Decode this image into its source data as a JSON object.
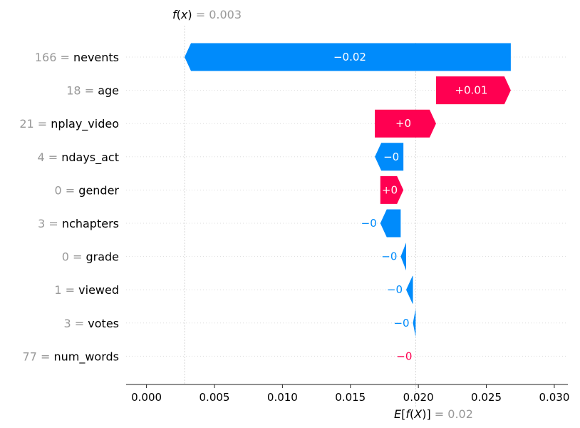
{
  "colors": {
    "positive": "#ff0051",
    "negative": "#008bfb",
    "muted_text": "#999999",
    "gridline": "#cccccc"
  },
  "chart_data": {
    "type": "waterfall",
    "fx_label": {
      "prefix": "f",
      "var": "x",
      "equals": " = ",
      "value_text": "0.003"
    },
    "ex_label": {
      "prefix": "E",
      "inner_f": "f",
      "var": "X",
      "equals": " = ",
      "value_text": "0.02"
    },
    "base_value": 0.0198,
    "final_value": 0.0028,
    "xlim": [
      -0.0015,
      0.031
    ],
    "xticks": [
      0.0,
      0.005,
      0.01,
      0.015,
      0.02,
      0.025,
      0.03
    ],
    "xtick_labels": [
      "0.000",
      "0.005",
      "0.010",
      "0.015",
      "0.020",
      "0.025",
      "0.030"
    ],
    "features": [
      {
        "value": "166",
        "name": "nevents",
        "start": 0.0268,
        "end": 0.0028,
        "label": "−0.02"
      },
      {
        "value": "18",
        "name": "age",
        "start": 0.0213,
        "end": 0.0268,
        "label": "+0.01"
      },
      {
        "value": "21",
        "name": "nplay_video",
        "start": 0.0168,
        "end": 0.0213,
        "label": "+0"
      },
      {
        "value": "4",
        "name": "ndays_act",
        "start": 0.0189,
        "end": 0.0168,
        "label": "−0"
      },
      {
        "value": "0",
        "name": "gender",
        "start": 0.0172,
        "end": 0.0189,
        "label": "+0"
      },
      {
        "value": "3",
        "name": "nchapters",
        "start": 0.0187,
        "end": 0.0172,
        "label": "−0"
      },
      {
        "value": "0",
        "name": "grade",
        "start": 0.0191,
        "end": 0.0187,
        "label": "−0"
      },
      {
        "value": "1",
        "name": "viewed",
        "start": 0.0196,
        "end": 0.0191,
        "label": "−0"
      },
      {
        "value": "3",
        "name": "votes",
        "start": 0.0198,
        "end": 0.0196,
        "label": "−0"
      },
      {
        "value": "77",
        "name": "num_words",
        "start": 0.0198,
        "end": 0.0198,
        "label": "−0"
      }
    ]
  }
}
